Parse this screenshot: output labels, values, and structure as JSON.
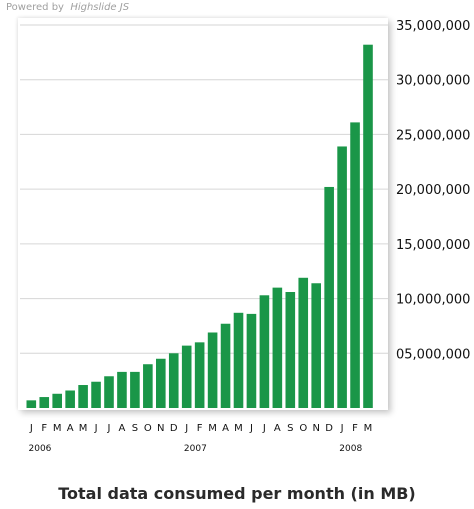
{
  "powered_by": {
    "prefix": "Powered by",
    "brand": "Highslide JS"
  },
  "colors": {
    "bar": "#1a9648",
    "grid": "#d6d6d6",
    "axis_text": "#111111"
  },
  "chart_data": {
    "type": "bar",
    "title": "Total data consumed per month (in MB)",
    "categories": [
      "J",
      "F",
      "M",
      "A",
      "M",
      "J",
      "J",
      "A",
      "S",
      "O",
      "N",
      "D",
      "J",
      "F",
      "M",
      "A",
      "M",
      "J",
      "J",
      "A",
      "S",
      "O",
      "N",
      "D",
      "J",
      "F",
      "M"
    ],
    "year_labels": [
      {
        "label": "2006",
        "index": 0
      },
      {
        "label": "2007",
        "index": 12
      },
      {
        "label": "2008",
        "index": 24
      }
    ],
    "values": [
      700000,
      1000000,
      1300000,
      1600000,
      2100000,
      2400000,
      2900000,
      3300000,
      3300000,
      4000000,
      4500000,
      5000000,
      5700000,
      6000000,
      6900000,
      7700000,
      8700000,
      8600000,
      10300000,
      11000000,
      10600000,
      11900000,
      11400000,
      20200000,
      23900000,
      26100000,
      33200000
    ],
    "ylim": [
      0,
      35000000
    ],
    "yticks": [
      5000000,
      10000000,
      15000000,
      20000000,
      25000000,
      30000000,
      35000000
    ],
    "ytick_labels": [
      "05,000,000",
      "10,000,000",
      "15,000,000",
      "20,000,000",
      "25,000,000",
      "30,000,000",
      "35,000,000"
    ],
    "grid": true,
    "y_axis_side": "right"
  }
}
